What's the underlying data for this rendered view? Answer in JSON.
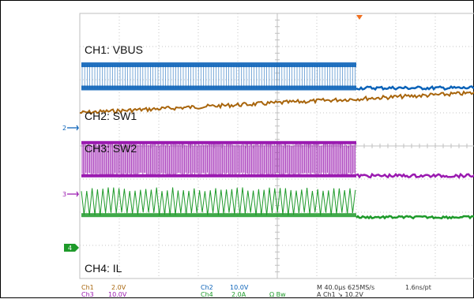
{
  "chart_data": {
    "type": "line",
    "title": "",
    "grid": true,
    "x_range_divisions": [
      0,
      10
    ],
    "y_range_divisions": [
      -4,
      4
    ],
    "channels": [
      {
        "id": "CH1",
        "name": "CH1: VBUS",
        "color": "#a8650c",
        "scale": "2.0V",
        "marker": ""
      },
      {
        "id": "CH2",
        "name": "CH2: SW1",
        "color": "#0a62b8",
        "scale": "10.0V",
        "marker": "2"
      },
      {
        "id": "CH3",
        "name": "CH3: SW2",
        "color": "#9a1ab0",
        "scale": "10.0V",
        "marker": "3"
      },
      {
        "id": "CH4",
        "name": "CH4: IL",
        "color": "#1e9a2a",
        "scale": "2.0A",
        "marker": "4"
      }
    ],
    "switching_stop_division": 7.0,
    "vbus_start_division": 1.0,
    "vbus_end_division": 1.6
  },
  "footer": {
    "ch1_label": "Ch1",
    "ch1_scale": "2.0V",
    "ch2_label": "Ch2",
    "ch2_scale": "10.0V",
    "ch3_label": "Ch3",
    "ch3_scale": "10.0V",
    "ch4_label": "Ch4",
    "ch4_scale": "2.0A",
    "bw_label": "Ω Bw",
    "timebase": "M 40.0µs 625MS/s",
    "resolution": "1.6ns/pt",
    "trigger": "A  Ch1  ↘  10.2V"
  },
  "colors": {
    "ch1": "#a8650c",
    "ch2": "#0a62b8",
    "ch3": "#9a1ab0",
    "ch4": "#1e9a2a",
    "trigger": "#f07020"
  }
}
